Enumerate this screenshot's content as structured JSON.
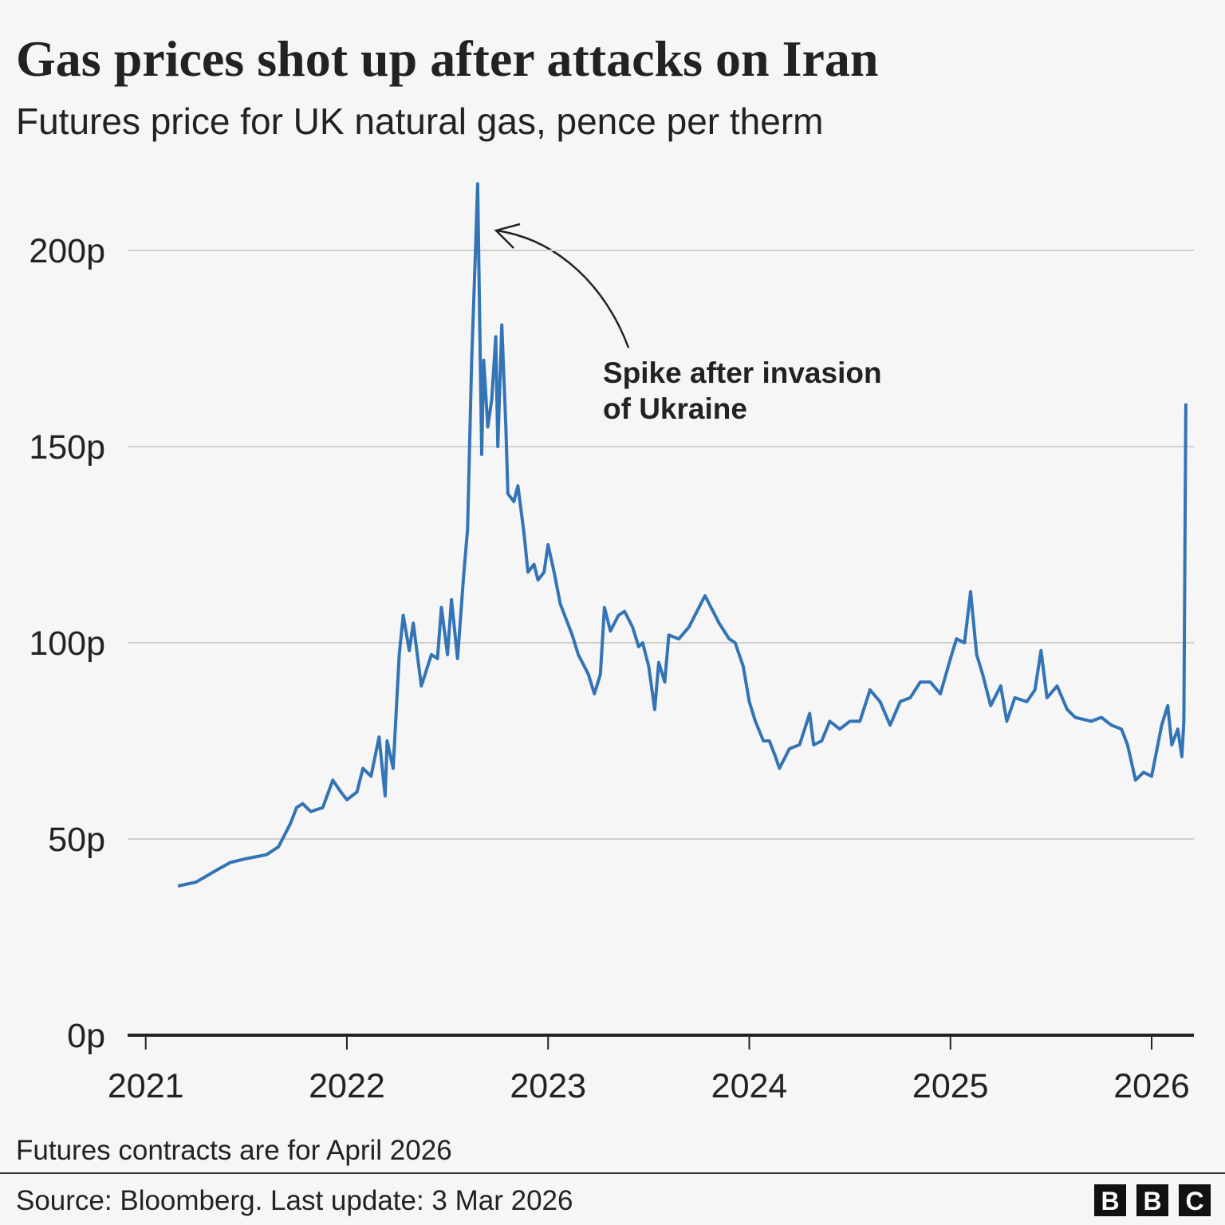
{
  "chart_data": {
    "type": "line",
    "title": "Gas prices shot up after attacks on Iran",
    "subtitle": "Futures price for UK natural gas, pence per therm",
    "annotation": [
      "Spike after invasion",
      "of Ukraine"
    ],
    "note": "Futures contracts are for April 2026",
    "source": "Source: Bloomberg. Last update: 3 Mar 2026",
    "logo": [
      "B",
      "B",
      "C"
    ],
    "color": "#3274b5",
    "grid": true,
    "xlim": [
      2020.91,
      2026.21
    ],
    "xticks": [
      2021,
      2022,
      2023,
      2024,
      2025,
      2026
    ],
    "ylim": [
      0,
      220
    ],
    "yticks": [
      {
        "value": 0,
        "label": "0p"
      },
      {
        "value": 50,
        "label": "50p"
      },
      {
        "value": 100,
        "label": "100p"
      },
      {
        "value": 150,
        "label": "150p"
      },
      {
        "value": 200,
        "label": "200p"
      }
    ],
    "x": [
      2021.16,
      2021.25,
      2021.35,
      2021.42,
      2021.5,
      2021.6,
      2021.66,
      2021.72,
      2021.75,
      2021.78,
      2021.82,
      2021.88,
      2021.93,
      2021.97,
      2022.0,
      2022.05,
      2022.08,
      2022.12,
      2022.16,
      2022.19,
      2022.2,
      2022.23,
      2022.26,
      2022.28,
      2022.31,
      2022.33,
      2022.37,
      2022.42,
      2022.45,
      2022.47,
      2022.5,
      2022.52,
      2022.55,
      2022.58,
      2022.6,
      2022.62,
      2022.64,
      2022.65,
      2022.67,
      2022.68,
      2022.7,
      2022.72,
      2022.74,
      2022.75,
      2022.77,
      2022.79,
      2022.8,
      2022.83,
      2022.85,
      2022.88,
      2022.9,
      2022.93,
      2022.95,
      2022.98,
      2023.0,
      2023.03,
      2023.06,
      2023.09,
      2023.12,
      2023.15,
      2023.2,
      2023.23,
      2023.26,
      2023.28,
      2023.31,
      2023.35,
      2023.38,
      2023.42,
      2023.45,
      2023.47,
      2023.5,
      2023.53,
      2023.55,
      2023.58,
      2023.6,
      2023.65,
      2023.7,
      2023.75,
      2023.78,
      2023.82,
      2023.85,
      2023.9,
      2023.93,
      2023.97,
      2024.0,
      2024.03,
      2024.07,
      2024.1,
      2024.13,
      2024.15,
      2024.2,
      2024.25,
      2024.3,
      2024.32,
      2024.36,
      2024.4,
      2024.45,
      2024.5,
      2024.55,
      2024.6,
      2024.65,
      2024.7,
      2024.75,
      2024.8,
      2024.85,
      2024.9,
      2024.95,
      2025.0,
      2025.03,
      2025.07,
      2025.1,
      2025.13,
      2025.16,
      2025.2,
      2025.25,
      2025.28,
      2025.32,
      2025.38,
      2025.42,
      2025.45,
      2025.48,
      2025.53,
      2025.58,
      2025.62,
      2025.7,
      2025.75,
      2025.8,
      2025.85,
      2025.88,
      2025.92,
      2025.96,
      2026.0,
      2026.05,
      2026.08,
      2026.1,
      2026.13,
      2026.15,
      2026.16,
      2026.17
    ],
    "values": [
      38,
      39,
      42,
      44,
      45,
      46,
      48,
      54,
      58,
      59,
      57,
      58,
      65,
      62,
      60,
      62,
      68,
      66,
      76,
      61,
      75,
      68,
      97,
      107,
      98,
      105,
      89,
      97,
      96,
      109,
      97,
      111,
      96,
      117,
      129,
      172,
      201,
      217,
      148,
      172,
      155,
      162,
      178,
      150,
      181,
      155,
      138,
      136,
      140,
      128,
      118,
      120,
      116,
      118,
      125,
      118,
      110,
      106,
      102,
      97,
      92,
      87,
      92,
      109,
      103,
      107,
      108,
      104,
      99,
      100,
      94,
      83,
      95,
      90,
      102,
      101,
      104,
      109,
      112,
      108,
      105,
      101,
      100,
      94,
      85,
      80,
      75,
      75,
      71,
      68,
      73,
      74,
      82,
      74,
      75,
      80,
      78,
      80,
      80,
      88,
      85,
      79,
      85,
      86,
      90,
      90,
      87,
      96,
      101,
      100,
      113,
      97,
      92,
      84,
      89,
      80,
      86,
      85,
      88,
      98,
      86,
      89,
      83,
      81,
      80,
      81,
      79,
      78,
      74,
      65,
      67,
      66,
      79,
      84,
      74,
      78,
      71,
      80,
      161
    ]
  }
}
